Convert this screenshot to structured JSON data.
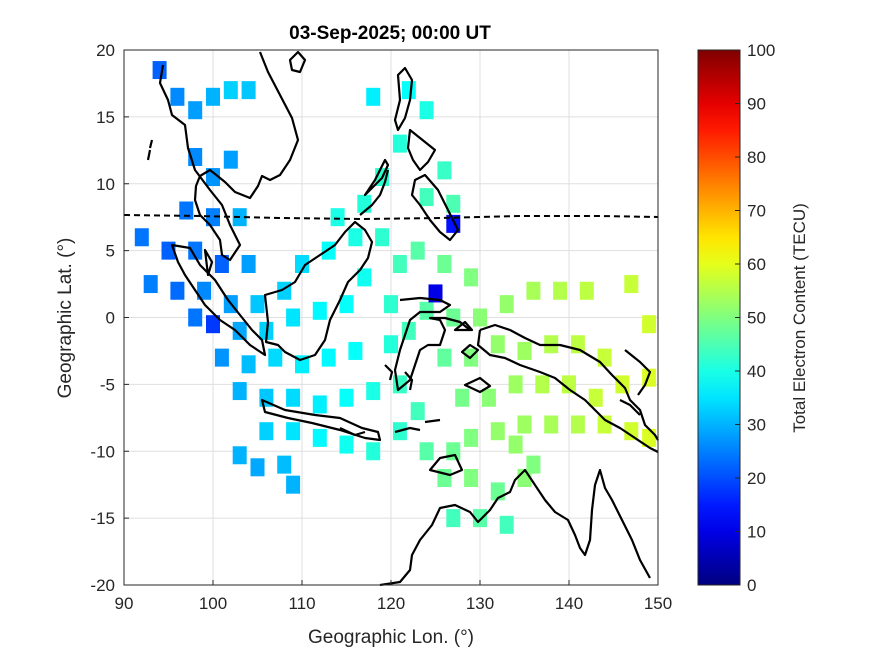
{
  "chart_data": {
    "type": "heatmap",
    "title": "03-Sep-2025; 00:00 UT",
    "xlabel": "Geographic Lon. (°)",
    "ylabel": "Geographic Lat. (°)",
    "xlim": [
      90,
      150
    ],
    "ylim": [
      -20,
      20
    ],
    "xticks": [
      90,
      100,
      110,
      120,
      130,
      140,
      150
    ],
    "yticks": [
      -20,
      -15,
      -10,
      -5,
      0,
      5,
      10,
      15,
      20
    ],
    "grid": true,
    "colorbar": {
      "label": "Total Electron Content (TECU)",
      "range": [
        0,
        100
      ],
      "ticks": [
        0,
        10,
        20,
        30,
        40,
        50,
        60,
        70,
        80,
        90,
        100
      ],
      "colormap": "jet"
    },
    "series": [
      {
        "value_units": "TECU",
        "points": [
          {
            "lon": 94,
            "lat": 18.5,
            "tec": 22
          },
          {
            "lon": 96,
            "lat": 16.5,
            "tec": 26
          },
          {
            "lon": 98,
            "lat": 15.5,
            "tec": 28
          },
          {
            "lon": 100,
            "lat": 16.5,
            "tec": 30
          },
          {
            "lon": 102,
            "lat": 17,
            "tec": 33
          },
          {
            "lon": 104,
            "lat": 17,
            "tec": 32
          },
          {
            "lon": 98,
            "lat": 12,
            "tec": 26
          },
          {
            "lon": 100,
            "lat": 10.5,
            "tec": 27
          },
          {
            "lon": 102,
            "lat": 11.8,
            "tec": 28
          },
          {
            "lon": 97,
            "lat": 8,
            "tec": 24
          },
          {
            "lon": 100,
            "lat": 7.5,
            "tec": 25
          },
          {
            "lon": 103,
            "lat": 7.5,
            "tec": 30
          },
          {
            "lon": 92,
            "lat": 6,
            "tec": 24
          },
          {
            "lon": 95,
            "lat": 5,
            "tec": 22
          },
          {
            "lon": 98,
            "lat": 5,
            "tec": 24
          },
          {
            "lon": 101,
            "lat": 4,
            "tec": 22
          },
          {
            "lon": 104,
            "lat": 4,
            "tec": 28
          },
          {
            "lon": 93,
            "lat": 2.5,
            "tec": 25
          },
          {
            "lon": 96,
            "lat": 2,
            "tec": 23
          },
          {
            "lon": 99,
            "lat": 2,
            "tec": 26
          },
          {
            "lon": 102,
            "lat": 1,
            "tec": 28
          },
          {
            "lon": 105,
            "lat": 1,
            "tec": 32
          },
          {
            "lon": 108,
            "lat": 2,
            "tec": 33
          },
          {
            "lon": 98,
            "lat": 0,
            "tec": 24
          },
          {
            "lon": 100,
            "lat": -0.5,
            "tec": 18
          },
          {
            "lon": 103,
            "lat": -1,
            "tec": 29
          },
          {
            "lon": 106,
            "lat": -1,
            "tec": 33
          },
          {
            "lon": 109,
            "lat": 0,
            "tec": 35
          },
          {
            "lon": 112,
            "lat": 0.5,
            "tec": 37
          },
          {
            "lon": 115,
            "lat": 1,
            "tec": 38
          },
          {
            "lon": 101,
            "lat": -3,
            "tec": 27
          },
          {
            "lon": 104,
            "lat": -3.5,
            "tec": 31
          },
          {
            "lon": 107,
            "lat": -3,
            "tec": 34
          },
          {
            "lon": 110,
            "lat": -3.5,
            "tec": 36
          },
          {
            "lon": 113,
            "lat": -3,
            "tec": 37
          },
          {
            "lon": 116,
            "lat": -2.5,
            "tec": 38
          },
          {
            "lon": 103,
            "lat": -5.5,
            "tec": 30
          },
          {
            "lon": 106,
            "lat": -6,
            "tec": 32
          },
          {
            "lon": 109,
            "lat": -6,
            "tec": 34
          },
          {
            "lon": 112,
            "lat": -6.5,
            "tec": 36
          },
          {
            "lon": 115,
            "lat": -6,
            "tec": 38
          },
          {
            "lon": 118,
            "lat": -5.5,
            "tec": 40
          },
          {
            "lon": 106,
            "lat": -8.5,
            "tec": 33
          },
          {
            "lon": 109,
            "lat": -8.5,
            "tec": 35
          },
          {
            "lon": 112,
            "lat": -9,
            "tec": 37
          },
          {
            "lon": 115,
            "lat": -9.5,
            "tec": 39
          },
          {
            "lon": 118,
            "lat": -10,
            "tec": 41
          },
          {
            "lon": 103,
            "lat": -10.3,
            "tec": 30
          },
          {
            "lon": 105,
            "lat": -11.2,
            "tec": 29
          },
          {
            "lon": 108,
            "lat": -11,
            "tec": 31
          },
          {
            "lon": 109,
            "lat": -12.5,
            "tec": 30
          },
          {
            "lon": 110,
            "lat": 4,
            "tec": 34
          },
          {
            "lon": 113,
            "lat": 5,
            "tec": 38
          },
          {
            "lon": 116,
            "lat": 6,
            "tec": 40
          },
          {
            "lon": 117,
            "lat": 3,
            "tec": 39
          },
          {
            "lon": 114,
            "lat": 7.5,
            "tec": 40
          },
          {
            "lon": 117,
            "lat": 8.5,
            "tec": 41
          },
          {
            "lon": 119,
            "lat": 10.5,
            "tec": 42
          },
          {
            "lon": 119,
            "lat": 6,
            "tec": 42
          },
          {
            "lon": 121,
            "lat": 4,
            "tec": 44
          },
          {
            "lon": 120,
            "lat": 1,
            "tec": 42
          },
          {
            "lon": 120,
            "lat": -2,
            "tec": 41
          },
          {
            "lon": 122,
            "lat": -1,
            "tec": 44
          },
          {
            "lon": 121,
            "lat": -5,
            "tec": 43
          },
          {
            "lon": 123,
            "lat": -7,
            "tec": 44
          },
          {
            "lon": 121,
            "lat": -8.5,
            "tec": 42
          },
          {
            "lon": 124,
            "lat": -10,
            "tec": 46
          },
          {
            "lon": 127,
            "lat": -10,
            "tec": 48
          },
          {
            "lon": 124,
            "lat": 0.5,
            "tec": 46
          },
          {
            "lon": 125,
            "lat": 1.8,
            "tec": 10
          },
          {
            "lon": 127,
            "lat": 7,
            "tec": 14
          },
          {
            "lon": 123,
            "lat": 5,
            "tec": 46
          },
          {
            "lon": 126,
            "lat": 4,
            "tec": 48
          },
          {
            "lon": 129,
            "lat": 3,
            "tec": 50
          },
          {
            "lon": 127,
            "lat": 0,
            "tec": 48
          },
          {
            "lon": 130,
            "lat": 0,
            "tec": 51
          },
          {
            "lon": 133,
            "lat": 1,
            "tec": 52
          },
          {
            "lon": 136,
            "lat": 2,
            "tec": 54
          },
          {
            "lon": 139,
            "lat": 2,
            "tec": 55
          },
          {
            "lon": 142,
            "lat": 2,
            "tec": 56
          },
          {
            "lon": 147,
            "lat": 2.5,
            "tec": 57
          },
          {
            "lon": 126,
            "lat": -3,
            "tec": 47
          },
          {
            "lon": 129,
            "lat": -3,
            "tec": 50
          },
          {
            "lon": 132,
            "lat": -2,
            "tec": 52
          },
          {
            "lon": 135,
            "lat": -2.5,
            "tec": 53
          },
          {
            "lon": 138,
            "lat": -2,
            "tec": 55
          },
          {
            "lon": 141,
            "lat": -2,
            "tec": 56
          },
          {
            "lon": 144,
            "lat": -3,
            "tec": 57
          },
          {
            "lon": 149,
            "lat": -0.5,
            "tec": 58
          },
          {
            "lon": 128,
            "lat": -6,
            "tec": 49
          },
          {
            "lon": 131,
            "lat": -6,
            "tec": 51
          },
          {
            "lon": 134,
            "lat": -5,
            "tec": 53
          },
          {
            "lon": 137,
            "lat": -5,
            "tec": 55
          },
          {
            "lon": 140,
            "lat": -5,
            "tec": 56
          },
          {
            "lon": 143,
            "lat": -6,
            "tec": 57
          },
          {
            "lon": 146,
            "lat": -5,
            "tec": 58
          },
          {
            "lon": 149,
            "lat": -4.5,
            "tec": 59
          },
          {
            "lon": 129,
            "lat": -9,
            "tec": 50
          },
          {
            "lon": 132,
            "lat": -8.5,
            "tec": 52
          },
          {
            "lon": 135,
            "lat": -8,
            "tec": 53
          },
          {
            "lon": 138,
            "lat": -8,
            "tec": 54
          },
          {
            "lon": 141,
            "lat": -8,
            "tec": 55
          },
          {
            "lon": 144,
            "lat": -8,
            "tec": 57
          },
          {
            "lon": 147,
            "lat": -8.5,
            "tec": 58
          },
          {
            "lon": 149,
            "lat": -9,
            "tec": 59
          },
          {
            "lon": 126,
            "lat": -12,
            "tec": 48
          },
          {
            "lon": 129,
            "lat": -12,
            "tec": 50
          },
          {
            "lon": 132,
            "lat": -13,
            "tec": 48
          },
          {
            "lon": 135,
            "lat": -12,
            "tec": 51
          },
          {
            "lon": 127,
            "lat": -15,
            "tec": 44
          },
          {
            "lon": 130,
            "lat": -15,
            "tec": 46
          },
          {
            "lon": 133,
            "lat": -15.5,
            "tec": 44
          },
          {
            "lon": 136,
            "lat": -11,
            "tec": 50
          },
          {
            "lon": 134,
            "lat": -9.5,
            "tec": 52
          },
          {
            "lon": 122,
            "lat": 17,
            "tec": 38
          },
          {
            "lon": 118,
            "lat": 16.5,
            "tec": 36
          },
          {
            "lon": 124,
            "lat": 15.5,
            "tec": 40
          },
          {
            "lon": 126,
            "lat": 11,
            "tec": 43
          },
          {
            "lon": 121,
            "lat": 13,
            "tec": 41
          },
          {
            "lon": 124,
            "lat": 9,
            "tec": 44
          },
          {
            "lon": 127,
            "lat": 8.5,
            "tec": 45
          }
        ]
      }
    ],
    "overlays": [
      "coastlines",
      "magnetic equator (dashed)"
    ]
  }
}
